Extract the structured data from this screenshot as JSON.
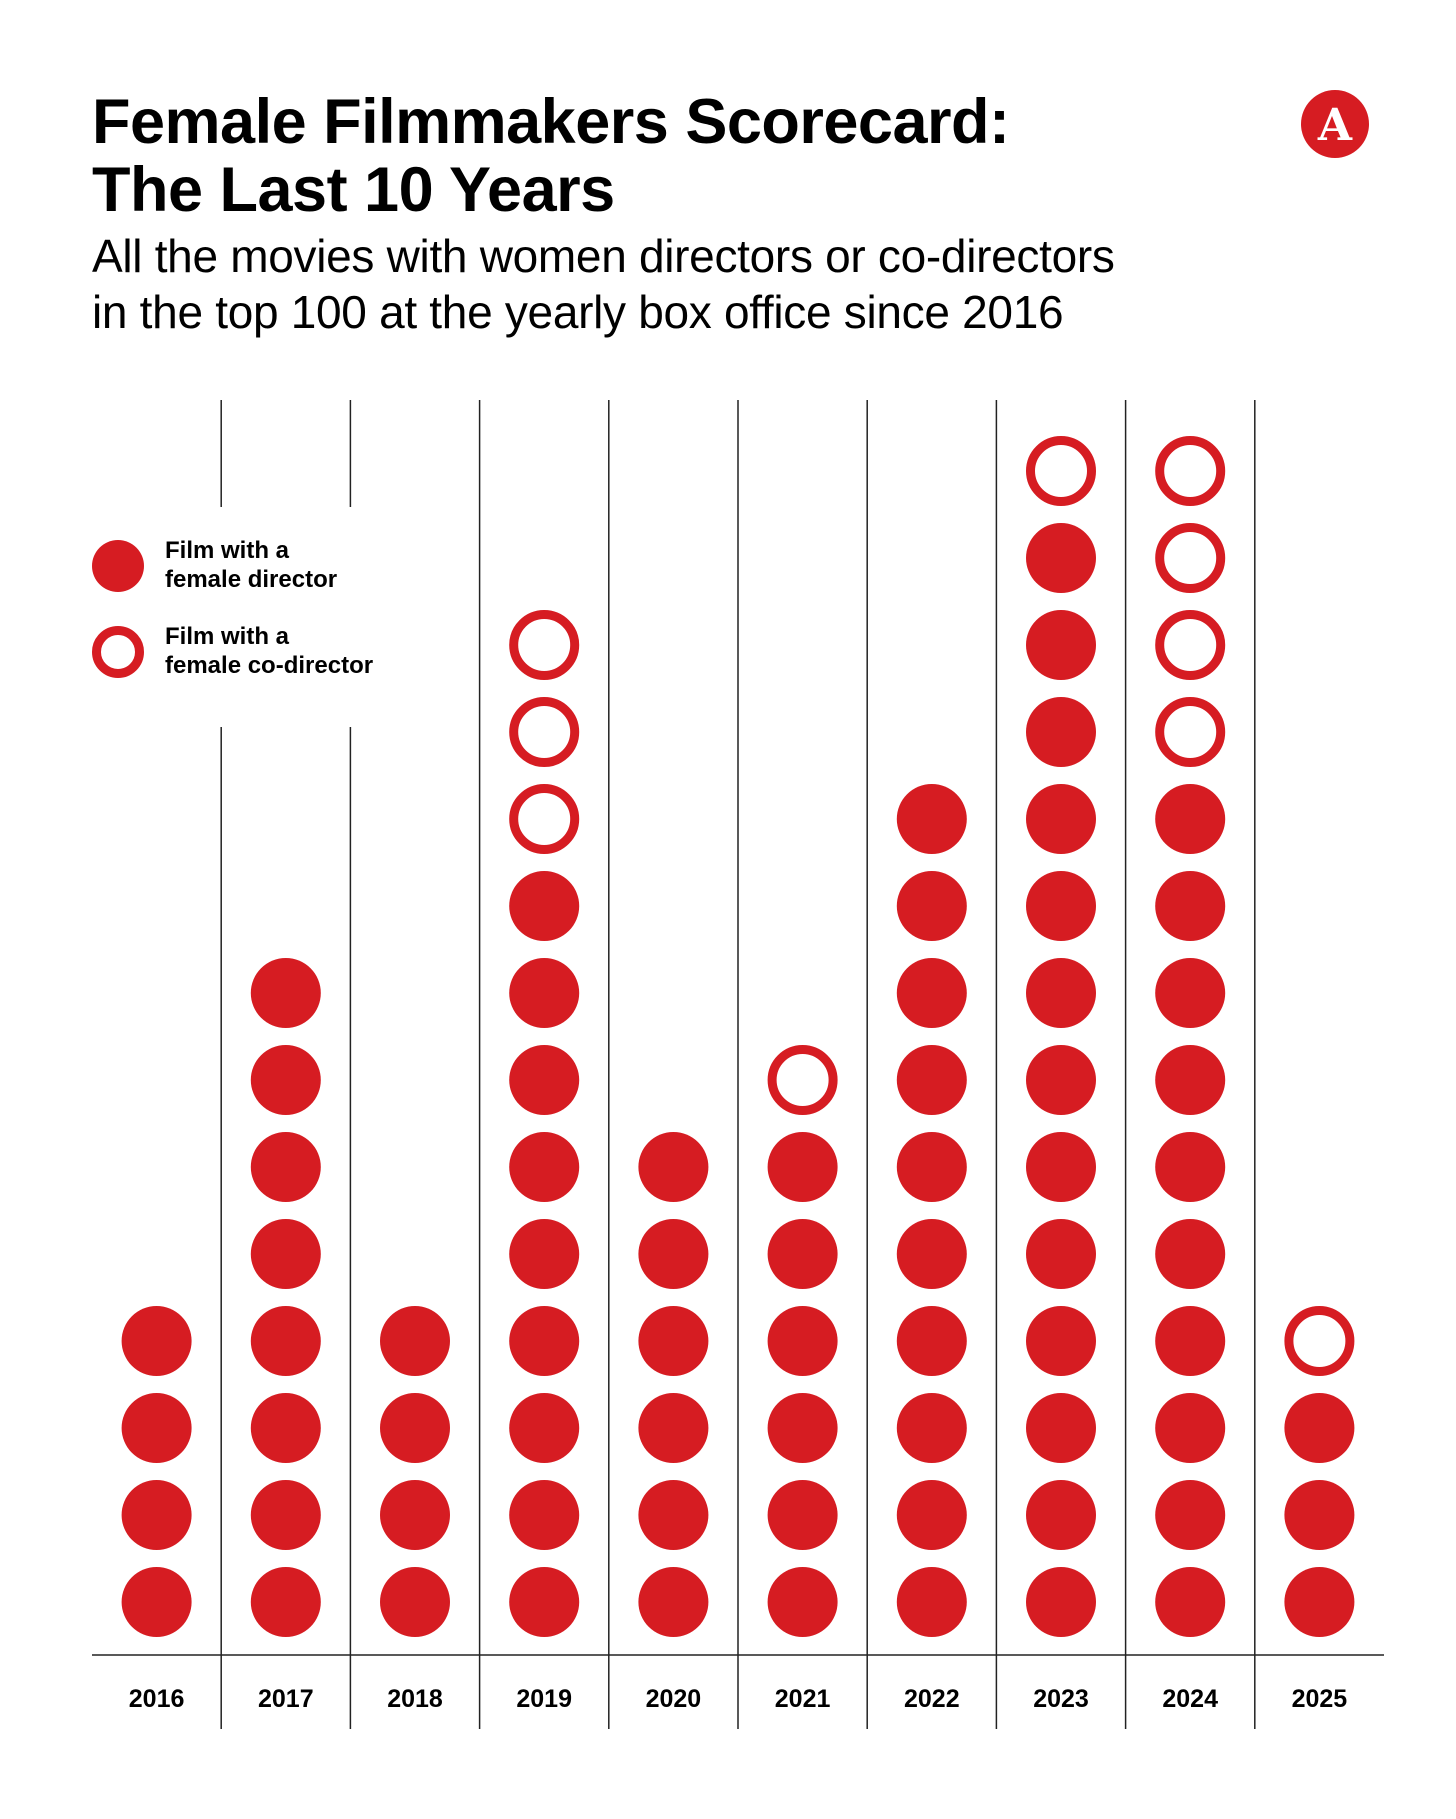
{
  "title_lines": [
    "Female Filmmakers Scorecard:",
    "The Last 10 Years"
  ],
  "subtitle_lines": [
    "All the movies with women directors or co-directors",
    "in the top 100 at the yearly box office since 2016"
  ],
  "logo": {
    "icon": "atlantic-a-logo",
    "letter": "A",
    "color": "#d61c22"
  },
  "legend": [
    {
      "style": "filled",
      "label_lines": [
        "Film with a",
        "female director"
      ]
    },
    {
      "style": "outline",
      "label_lines": [
        "Film with a",
        "female co-director"
      ]
    }
  ],
  "colors": {
    "accent": "#d61c22",
    "rules": "#222222",
    "background": "#ffffff"
  },
  "chart_data": {
    "type": "dot column (unit chart)",
    "x_field": "year",
    "categories": [
      "2016",
      "2017",
      "2018",
      "2019",
      "2020",
      "2021",
      "2022",
      "2023",
      "2024",
      "2025"
    ],
    "series": [
      {
        "name": "Film with a female director",
        "marker": "filled",
        "values": [
          4,
          8,
          4,
          9,
          6,
          6,
          10,
          13,
          10,
          3
        ]
      },
      {
        "name": "Film with a female co-director",
        "marker": "outline",
        "values": [
          0,
          0,
          0,
          3,
          0,
          1,
          0,
          1,
          4,
          1
        ]
      }
    ],
    "stacking": "filled dots at the bottom, outline dots stacked above",
    "grid": "vertical separators between years; horizontal baseline"
  }
}
